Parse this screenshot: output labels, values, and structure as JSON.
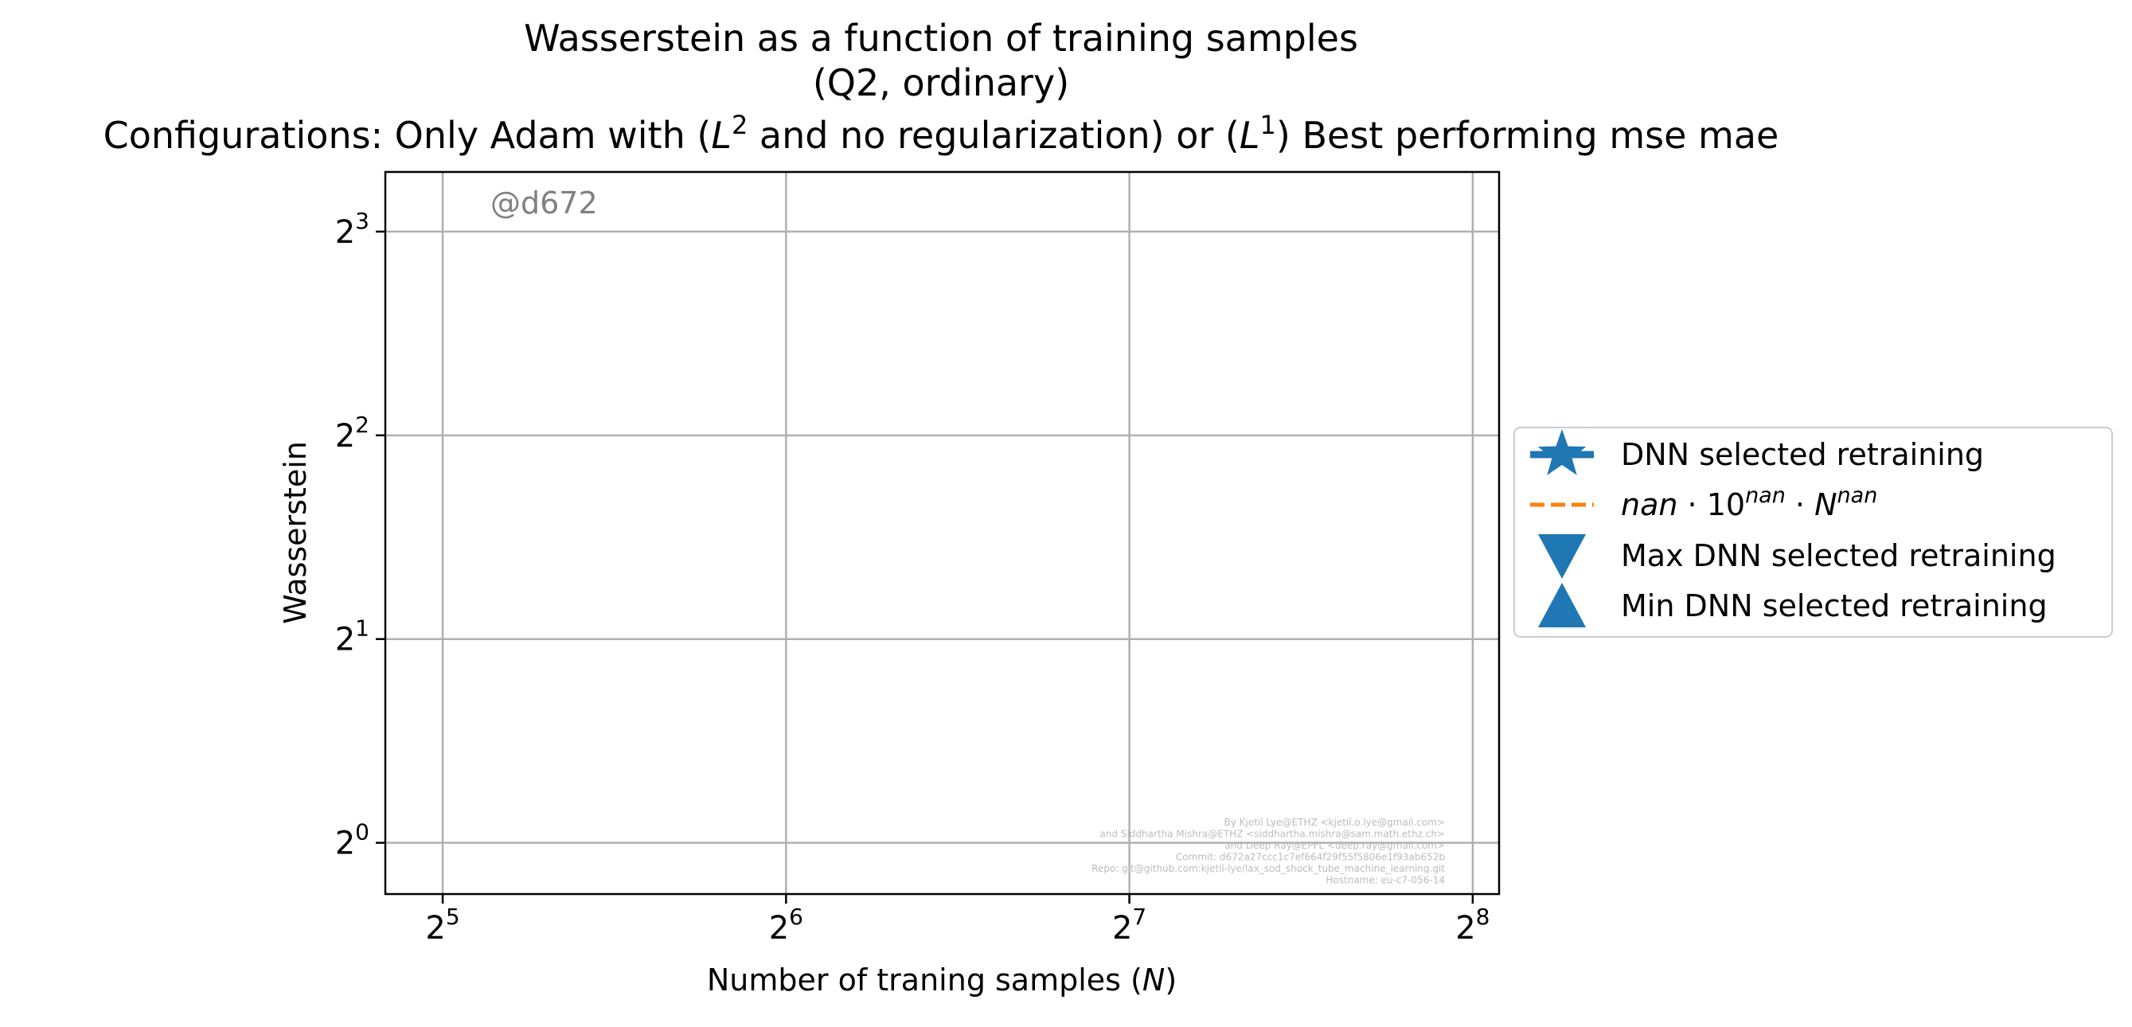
{
  "chart_data": {
    "type": "line",
    "title": [
      "Wasserstein as a function of training samples",
      "(Q2, ordinary)"
    ],
    "subtitle_parts": [
      "Configurations: Only Adam with (",
      "L",
      "2",
      " and no regularization) or (",
      "L",
      "1",
      ") Best performing mse mae"
    ],
    "xlabel_text": "Number of traning samples (",
    "xlabel_var": "N",
    "xlabel_close": ")",
    "ylabel": "Wasserstein",
    "x_scale": "log2",
    "y_scale": "log2",
    "xlim": [
      28.5,
      270
    ],
    "ylim": [
      0.84,
      9.8
    ],
    "x_ticks": [
      {
        "base": "2",
        "exp": "5",
        "value": 32
      },
      {
        "base": "2",
        "exp": "6",
        "value": 64
      },
      {
        "base": "2",
        "exp": "7",
        "value": 128
      },
      {
        "base": "2",
        "exp": "8",
        "value": 256
      }
    ],
    "y_ticks": [
      {
        "base": "2",
        "exp": "0",
        "value": 1
      },
      {
        "base": "2",
        "exp": "1",
        "value": 2
      },
      {
        "base": "2",
        "exp": "2",
        "value": 4
      },
      {
        "base": "2",
        "exp": "3",
        "value": 8
      }
    ],
    "grid": true,
    "legend_position": "outside-right",
    "series": [
      {
        "name": "DNN selected retraining",
        "marker": "star",
        "line": "solid",
        "color": "#1f77b4",
        "x": [],
        "y": []
      },
      {
        "name_parts": [
          "nan",
          " · 10",
          "nan",
          " · ",
          "N",
          "nan"
        ],
        "marker": "none",
        "line": "dashed",
        "color": "#ff7f0e",
        "x": [],
        "y": []
      },
      {
        "name": "Max DNN selected retraining",
        "marker": "triangle-down",
        "line": "none",
        "color": "#1f77b4",
        "x": [],
        "y": []
      },
      {
        "name": "Min DNN selected retraining",
        "marker": "triangle-up",
        "line": "none",
        "color": "#1f77b4",
        "x": [],
        "y": []
      }
    ],
    "annotations": {
      "commit_tag": "@d672",
      "credits": [
        "By Kjetil Lye@ETHZ <kjetil.o.lye@gmail.com>",
        "and Siddhartha Mishra@ETHZ <siddhartha.mishra@sam.math.ethz.ch>",
        "and Deep Ray@EPFL <deep.ray@gmail.com>",
        "Commit: d672a27ccc1c7ef664f29f55f5806e1f93ab652b",
        "Repo: git@github.com:kjetil-lye/lax_sod_shock_tube_machine_learning.git",
        "Hostname: eu-c7-056-14"
      ]
    }
  }
}
